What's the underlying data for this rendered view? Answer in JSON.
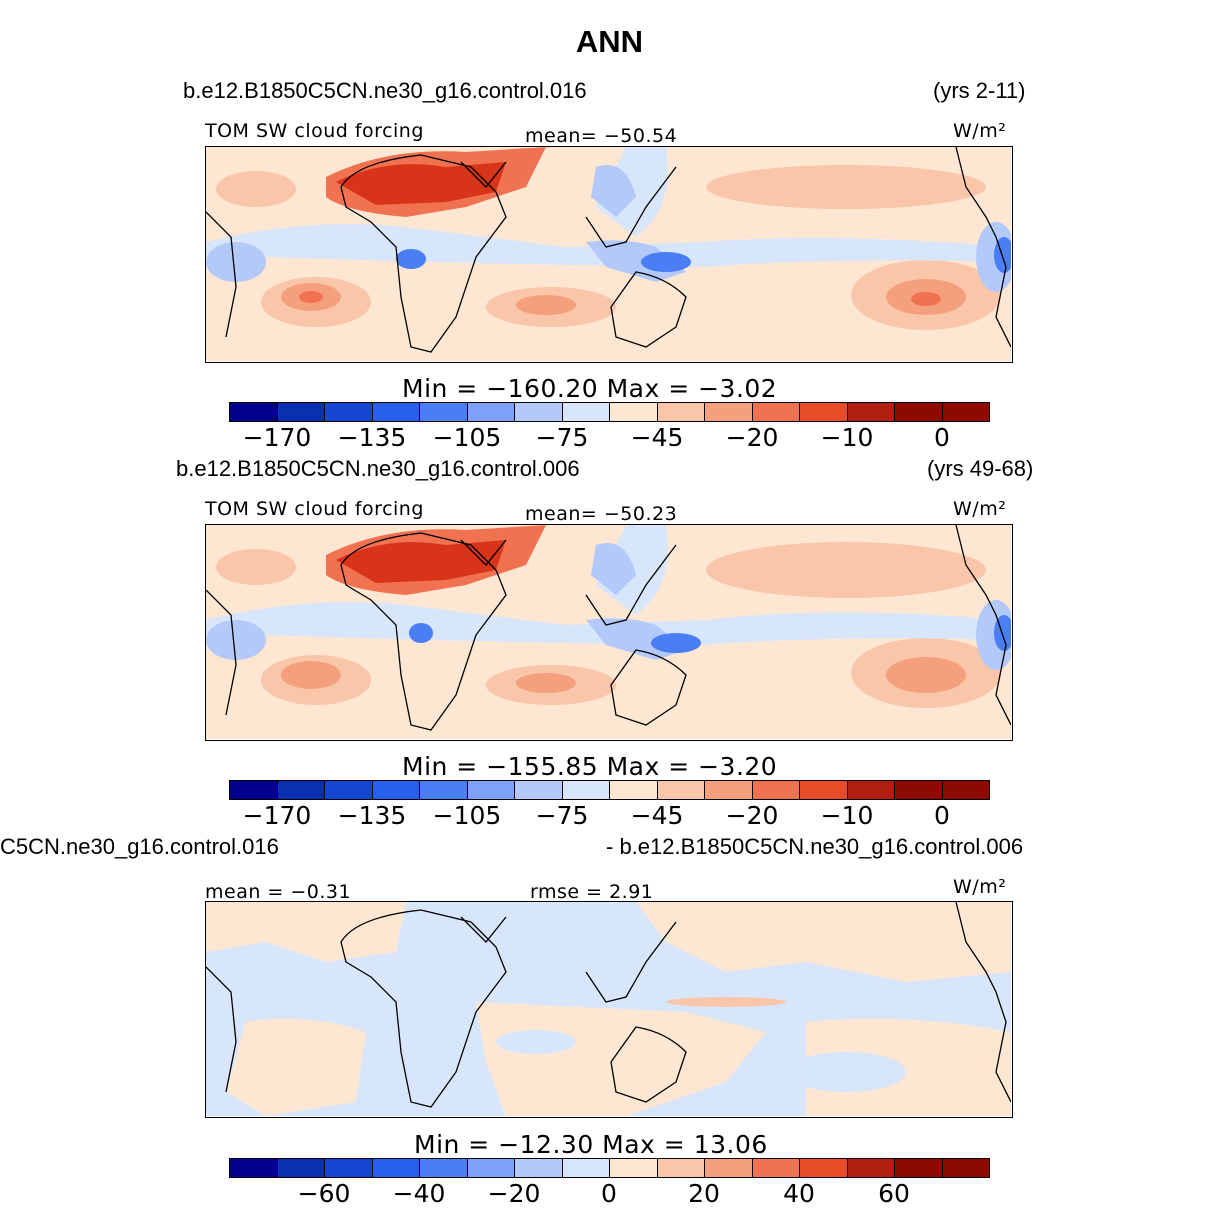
{
  "title": "ANN",
  "panels": [
    {
      "case_name": "b.e12.B1850C5CN.ne30_g16.control.016",
      "years": "(yrs 2-11)",
      "variable": "TOM SW cloud forcing",
      "stat_text": "mean= −50.54",
      "units": "W/m²",
      "minmax": "Min = −160.20 Max = −3.02",
      "colorbar_ticks": [
        "−170",
        "−135",
        "−105",
        "−75",
        "−45",
        "−20",
        "−10",
        "0"
      ]
    },
    {
      "case_name": "b.e12.B1850C5CN.ne30_g16.control.006",
      "years": "(yrs 49-68)",
      "variable": "TOM SW cloud forcing",
      "stat_text": "mean= −50.23",
      "units": "W/m²",
      "minmax": "Min = −155.85 Max = −3.20",
      "colorbar_ticks": [
        "−170",
        "−135",
        "−105",
        "−75",
        "−45",
        "−20",
        "−10",
        "0"
      ]
    },
    {
      "case_name": "C5CN.ne30_g16.control.016",
      "years": "- b.e12.B1850C5CN.ne30_g16.control.006",
      "variable": "mean = −0.31",
      "stat_text": "rmse = 2.91",
      "units": "W/m²",
      "minmax": "Min = −12.30 Max = 13.06",
      "colorbar_ticks": [
        "−60",
        "−40",
        "−20",
        "0",
        "20",
        "40",
        "60"
      ]
    }
  ],
  "colors": {
    "colorbar": [
      "#00008c",
      "#0a2fb0",
      "#1446d2",
      "#2860f0",
      "#4a7ef5",
      "#7da2f7",
      "#b3c9fa",
      "#d8e6fc",
      "#fde6d2",
      "#fac6aa",
      "#f5a07c",
      "#f07250",
      "#e84c28",
      "#d7341a",
      "#b02010",
      "#8c0a00"
    ],
    "ocean_neg": "#d8e6fc",
    "ocean_pos": "#fde6d2",
    "land_line": "#000000"
  }
}
